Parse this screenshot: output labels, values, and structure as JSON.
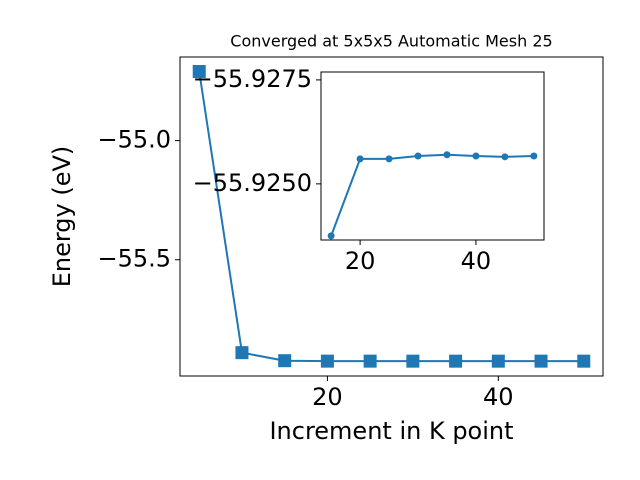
{
  "chart_data": [
    {
      "type": "line",
      "title": "Converged at 5x5x5 Automatic Mesh 25",
      "xlabel": "Increment in K point",
      "ylabel": "Energy (eV)",
      "x": [
        5,
        10,
        15,
        20,
        25,
        30,
        35,
        40,
        45,
        50
      ],
      "series": [
        {
          "color": "#1f77b4",
          "marker": "square",
          "values": [
            -54.71,
            -55.89,
            -55.9238,
            -55.9256,
            -55.9256,
            -55.9257,
            -55.9257,
            -55.9257,
            -55.9256,
            -55.9257
          ]
        }
      ],
      "xlim": [
        2.75,
        52.25
      ],
      "ylim": [
        -55.988,
        -54.649
      ],
      "xticks": [
        20,
        40
      ],
      "yticks": [
        {
          "value": -55.0,
          "label": "−55.0"
        },
        {
          "value": -55.5,
          "label": "−55.5"
        }
      ]
    },
    {
      "type": "line",
      "x": [
        15,
        20,
        25,
        30,
        35,
        40,
        45,
        50
      ],
      "series": [
        {
          "color": "#1f77b4",
          "marker": "circle",
          "values": [
            -55.92375,
            -55.9256,
            -55.9256,
            -55.92567,
            -55.9257,
            -55.92567,
            -55.92565,
            -55.92567
          ]
        }
      ],
      "xlim": [
        13.25,
        51.75
      ],
      "ylim": [
        -55.92365,
        -55.92769
      ],
      "xticks": [
        20,
        40
      ],
      "yticks": [
        {
          "value": -55.9275,
          "label": "−55.9275"
        },
        {
          "value": -55.925,
          "label": "−55.9250"
        }
      ]
    }
  ]
}
